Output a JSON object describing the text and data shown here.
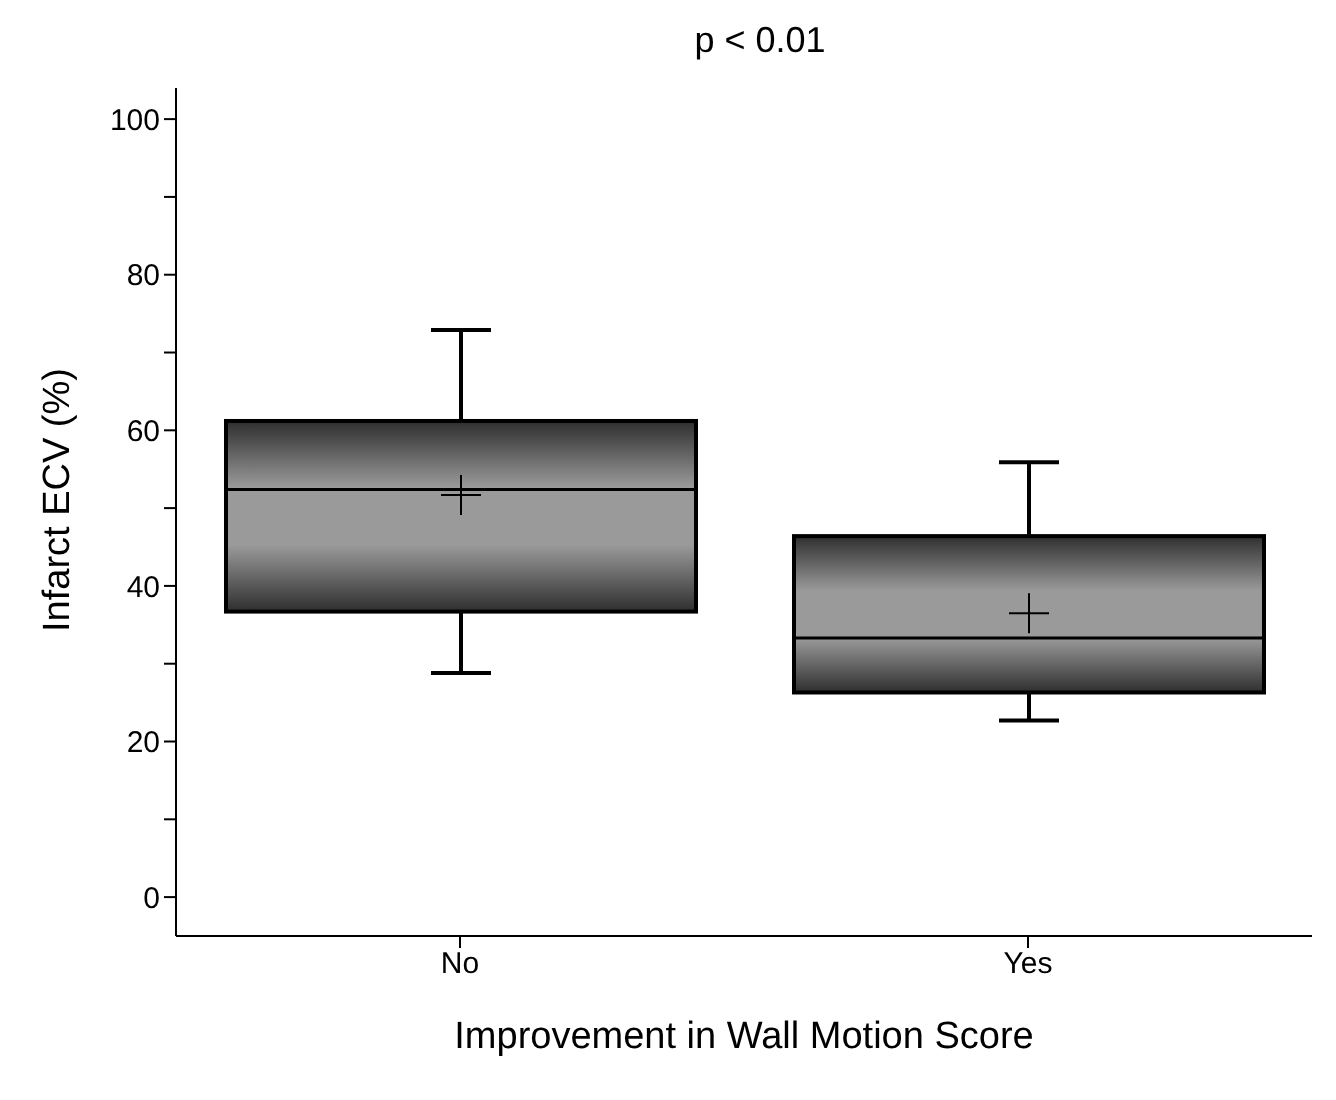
{
  "chart_data": {
    "type": "box",
    "title": "p < 0.01",
    "xlabel": "Improvement in Wall Motion Score",
    "ylabel": "Infarct ECV (%)",
    "categories": [
      "No",
      "Yes"
    ],
    "color": "#9a9a9a",
    "boxes": [
      {
        "low": 28.8,
        "q1": 36.7,
        "median": 52.4,
        "q3": 61.2,
        "high": 72.9,
        "mean": 51.7
      },
      {
        "low": 22.7,
        "q1": 26.3,
        "median": 33.3,
        "q3": 46.4,
        "high": 55.9,
        "mean": 36.5
      }
    ],
    "ylim": [
      -5,
      104
    ],
    "yticks": [
      0,
      {
        "value": 10,
        "label": null
      },
      20,
      {
        "value": 30,
        "label": null
      },
      40,
      {
        "value": 50,
        "label": null
      },
      60,
      {
        "value": 70,
        "label": null
      },
      80,
      {
        "value": 90,
        "label": null
      },
      100
    ],
    "grid": false
  }
}
